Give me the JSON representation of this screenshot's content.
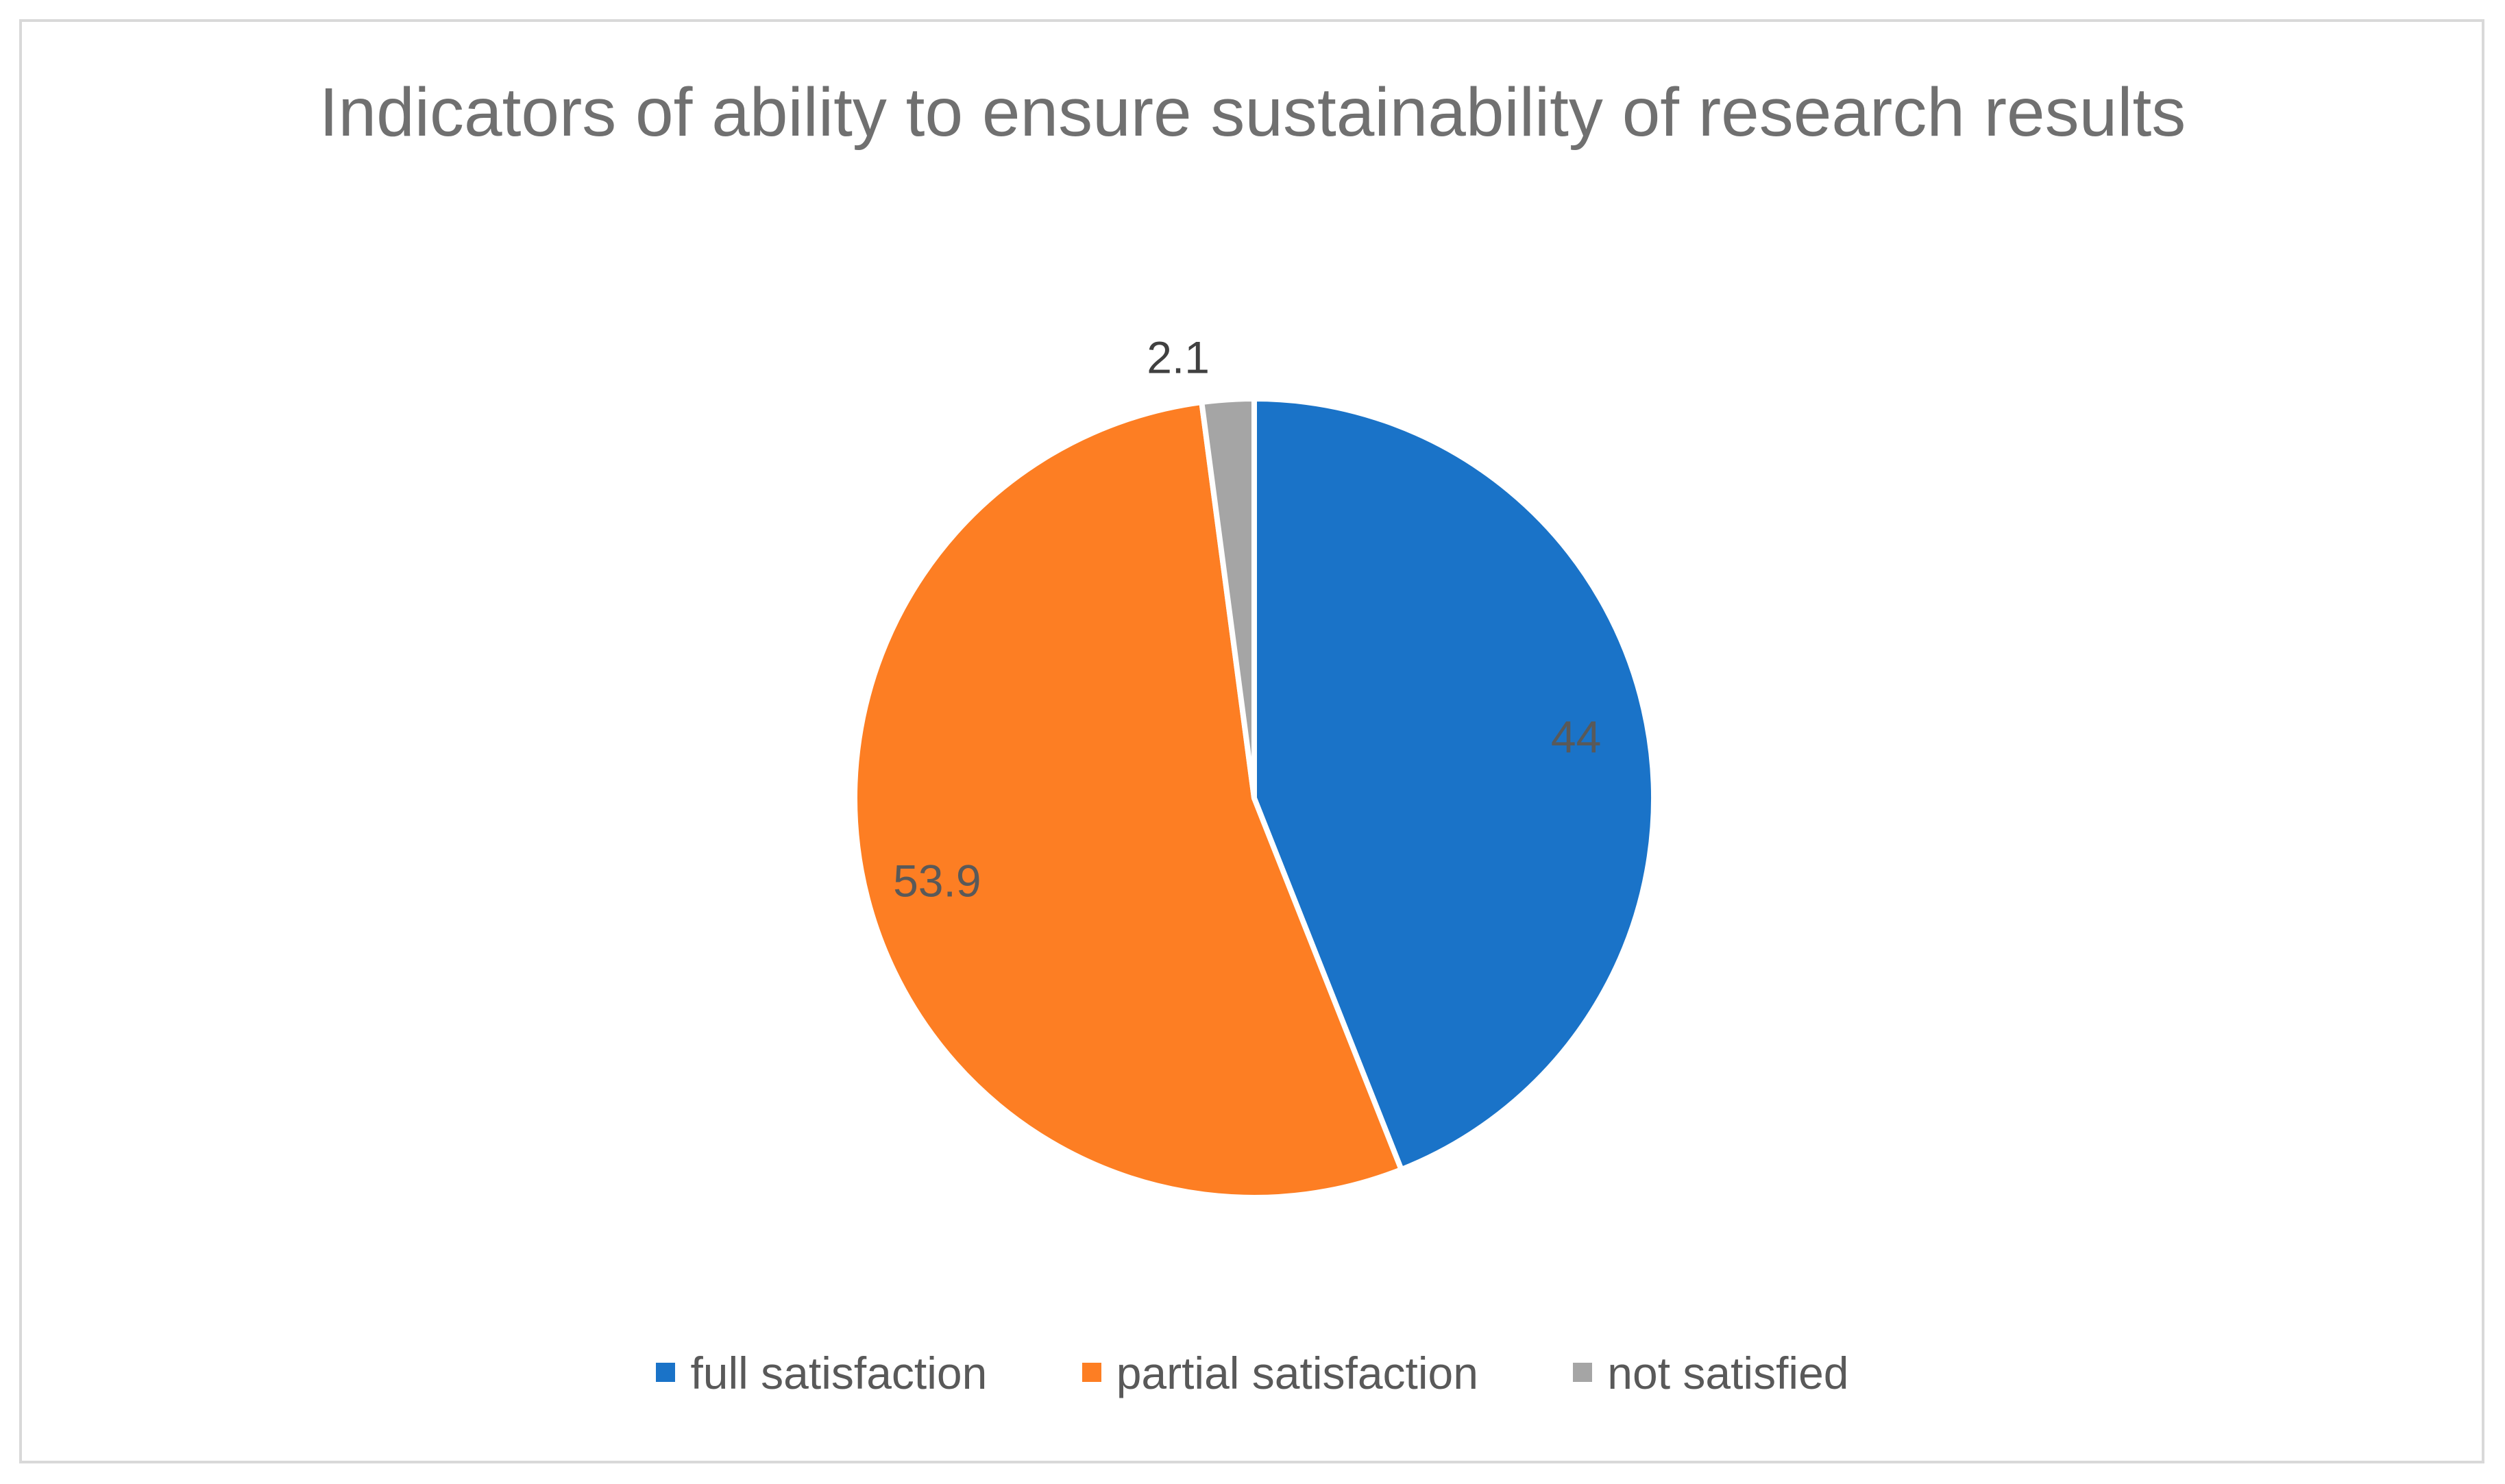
{
  "chart_data": {
    "type": "pie",
    "title": "Indicators of ability to ensure sustainability of research results",
    "categories": [
      "full satisfaction",
      "partial satisfaction",
      "not satisfied"
    ],
    "values": [
      44,
      53.9,
      2.1
    ],
    "data_labels": [
      "44",
      "53.9",
      "2.1"
    ],
    "colors": [
      "#1a73c8",
      "#fd7e23",
      "#a5a5a5"
    ],
    "label_colors": [
      "#595959",
      "#595959",
      "#404040"
    ],
    "start_angle_deg": 0,
    "direction": "clockwise",
    "legend_position": "bottom",
    "slice_separator_color": "#ffffff"
  }
}
